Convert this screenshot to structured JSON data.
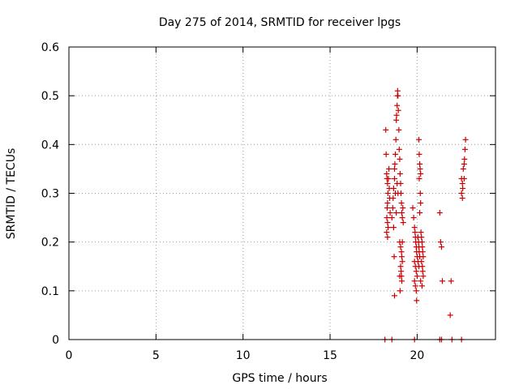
{
  "chart_data": {
    "type": "scatter",
    "title": "Day 275 of 2014, SRMTID for receiver lpgs",
    "xlabel": "GPS time / hours",
    "ylabel": "SRMTID / TECUs",
    "xlim": [
      0,
      24.5
    ],
    "ylim": [
      0,
      0.6
    ],
    "xticks": [
      0,
      5,
      10,
      15,
      20
    ],
    "yticks": [
      0,
      0.1,
      0.2,
      0.3,
      0.4,
      0.5,
      0.6
    ],
    "xtick_labels": [
      "0",
      "5",
      "10",
      "15",
      "20"
    ],
    "ytick_labels": [
      "0",
      "0.1",
      "0.2",
      "0.3",
      "0.4",
      "0.5",
      "0.6"
    ],
    "grid": true,
    "marker": "+",
    "color": "#cc0000",
    "series": [
      {
        "name": "SRMTID",
        "points": [
          [
            18.2,
            0.43
          ],
          [
            18.22,
            0.38
          ],
          [
            18.25,
            0.34
          ],
          [
            18.27,
            0.33
          ],
          [
            18.3,
            0.32
          ],
          [
            18.32,
            0.3
          ],
          [
            18.3,
            0.28
          ],
          [
            18.28,
            0.27
          ],
          [
            18.26,
            0.25
          ],
          [
            18.3,
            0.24
          ],
          [
            18.25,
            0.22
          ],
          [
            18.3,
            0.21
          ],
          [
            18.35,
            0.33
          ],
          [
            18.38,
            0.35
          ],
          [
            18.4,
            0.31
          ],
          [
            18.42,
            0.29
          ],
          [
            18.45,
            0.26
          ],
          [
            18.33,
            0.23
          ],
          [
            18.55,
            0.25
          ],
          [
            18.6,
            0.27
          ],
          [
            18.62,
            0.29
          ],
          [
            18.65,
            0.31
          ],
          [
            18.7,
            0.35
          ],
          [
            18.72,
            0.36
          ],
          [
            18.75,
            0.38
          ],
          [
            18.78,
            0.41
          ],
          [
            18.8,
            0.45
          ],
          [
            18.82,
            0.46
          ],
          [
            18.85,
            0.48
          ],
          [
            18.87,
            0.5
          ],
          [
            18.88,
            0.51
          ],
          [
            18.9,
            0.5
          ],
          [
            18.92,
            0.47
          ],
          [
            18.95,
            0.43
          ],
          [
            18.97,
            0.39
          ],
          [
            18.7,
            0.33
          ],
          [
            18.75,
            0.3
          ],
          [
            18.8,
            0.26
          ],
          [
            18.65,
            0.23
          ],
          [
            18.68,
            0.17
          ],
          [
            18.7,
            0.09
          ],
          [
            18.85,
            0.32
          ],
          [
            18.9,
            0.3
          ],
          [
            19.0,
            0.37
          ],
          [
            19.02,
            0.34
          ],
          [
            19.05,
            0.32
          ],
          [
            19.07,
            0.3
          ],
          [
            19.1,
            0.28
          ],
          [
            19.12,
            0.26
          ],
          [
            19.15,
            0.25
          ],
          [
            19.18,
            0.27
          ],
          [
            19.2,
            0.24
          ],
          [
            19.0,
            0.2
          ],
          [
            19.05,
            0.19
          ],
          [
            19.1,
            0.18
          ],
          [
            19.12,
            0.17
          ],
          [
            19.15,
            0.16
          ],
          [
            19.05,
            0.15
          ],
          [
            19.08,
            0.14
          ],
          [
            19.1,
            0.13
          ],
          [
            19.0,
            0.13
          ],
          [
            19.12,
            0.12
          ],
          [
            19.15,
            0.2
          ],
          [
            19.02,
            0.1
          ],
          [
            19.75,
            0.27
          ],
          [
            19.8,
            0.25
          ],
          [
            19.85,
            0.23
          ],
          [
            19.88,
            0.22
          ],
          [
            19.9,
            0.21
          ],
          [
            19.92,
            0.2
          ],
          [
            19.95,
            0.19
          ],
          [
            19.97,
            0.18
          ],
          [
            20.0,
            0.17
          ],
          [
            19.85,
            0.16
          ],
          [
            19.9,
            0.15
          ],
          [
            19.95,
            0.14
          ],
          [
            20.0,
            0.13
          ],
          [
            19.85,
            0.12
          ],
          [
            19.9,
            0.11
          ],
          [
            19.95,
            0.1
          ],
          [
            19.97,
            0.08
          ],
          [
            20.05,
            0.21
          ],
          [
            20.08,
            0.2
          ],
          [
            20.1,
            0.19
          ],
          [
            20.12,
            0.18
          ],
          [
            20.15,
            0.17
          ],
          [
            20.05,
            0.16
          ],
          [
            20.1,
            0.15
          ],
          [
            20.1,
            0.41
          ],
          [
            20.12,
            0.38
          ],
          [
            20.15,
            0.36
          ],
          [
            20.17,
            0.35
          ],
          [
            20.2,
            0.34
          ],
          [
            20.12,
            0.33
          ],
          [
            20.18,
            0.3
          ],
          [
            20.2,
            0.28
          ],
          [
            20.15,
            0.26
          ],
          [
            20.22,
            0.22
          ],
          [
            20.25,
            0.21
          ],
          [
            20.28,
            0.2
          ],
          [
            20.3,
            0.19
          ],
          [
            20.32,
            0.18
          ],
          [
            20.35,
            0.17
          ],
          [
            20.25,
            0.16
          ],
          [
            20.3,
            0.15
          ],
          [
            20.32,
            0.14
          ],
          [
            20.35,
            0.13
          ],
          [
            20.2,
            0.12
          ],
          [
            20.28,
            0.11
          ],
          [
            21.3,
            0.26
          ],
          [
            21.35,
            0.2
          ],
          [
            21.4,
            0.19
          ],
          [
            21.45,
            0.12
          ],
          [
            21.95,
            0.12
          ],
          [
            21.9,
            0.05
          ],
          [
            22.55,
            0.33
          ],
          [
            22.6,
            0.32
          ],
          [
            22.62,
            0.31
          ],
          [
            22.55,
            0.3
          ],
          [
            22.6,
            0.29
          ],
          [
            22.65,
            0.35
          ],
          [
            22.7,
            0.36
          ],
          [
            22.72,
            0.37
          ],
          [
            22.75,
            0.39
          ],
          [
            22.78,
            0.41
          ],
          [
            22.7,
            0.33
          ],
          [
            18.15,
            0.0
          ],
          [
            18.55,
            0.0
          ],
          [
            19.85,
            0.0
          ],
          [
            21.3,
            0.0
          ],
          [
            21.4,
            0.0
          ],
          [
            22.0,
            0.0
          ],
          [
            22.55,
            0.0
          ]
        ]
      }
    ]
  }
}
